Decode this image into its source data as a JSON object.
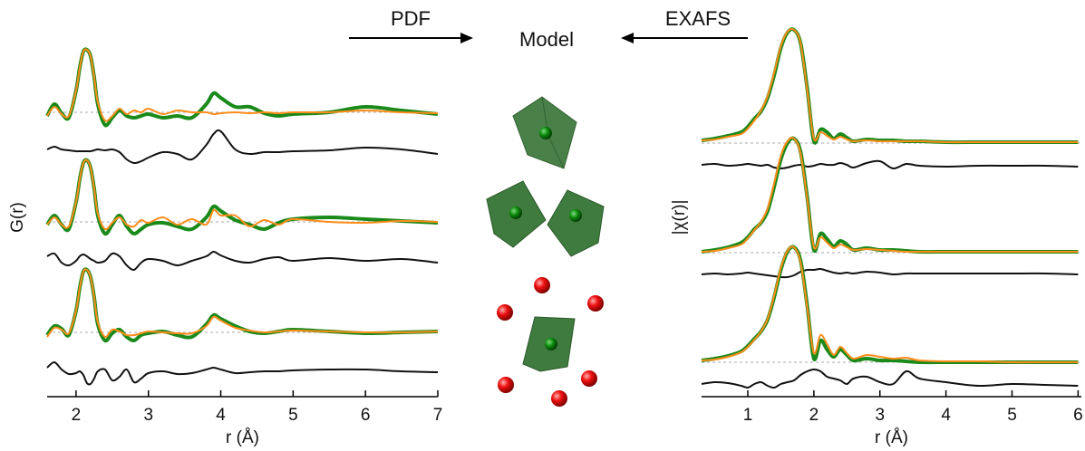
{
  "header": {
    "left_label": "PDF",
    "center_label": "Model",
    "right_label": "EXAFS"
  },
  "chart_data": [
    {
      "type": "line",
      "xlabel": "r (Å)",
      "ylabel": "G(r)",
      "xlim": [
        1.6,
        7.0
      ],
      "xticks": [
        2,
        3,
        4,
        5,
        6,
        7
      ],
      "ylim": [
        0,
        400
      ],
      "x": [
        1.6,
        1.7,
        1.8,
        1.9,
        2.0,
        2.05,
        2.1,
        2.15,
        2.2,
        2.25,
        2.3,
        2.4,
        2.5,
        2.6,
        2.7,
        2.8,
        2.9,
        3.0,
        3.2,
        3.4,
        3.6,
        3.8,
        3.9,
        4.0,
        4.2,
        4.4,
        4.6,
        4.8,
        5.0,
        5.5,
        6.0,
        6.5,
        7.0
      ],
      "baselines": [
        314,
        193,
        71
      ],
      "baseline_color": "#aaaaaa",
      "series": [
        {
          "color": "#1a8a1a",
          "width": 4,
          "values": [
            310,
            323,
            313,
            308,
            338,
            363,
            381,
            383,
            376,
            353,
            323,
            300,
            308,
            316,
            310,
            308,
            310,
            312,
            308,
            310,
            308,
            323,
            335,
            330,
            320,
            320,
            313,
            310,
            312,
            314,
            320,
            316,
            312
          ]
        },
        {
          "color": "#ff8c1a",
          "width": 2,
          "values": [
            310,
            320,
            312,
            310,
            338,
            363,
            381,
            383,
            376,
            353,
            325,
            305,
            310,
            318,
            312,
            316,
            314,
            318,
            312,
            316,
            314,
            314,
            312,
            313,
            314,
            313,
            314,
            313,
            314,
            314,
            316,
            314,
            313
          ]
        },
        {
          "color": "#111111",
          "width": 2,
          "values": [
            273,
            276,
            273,
            272,
            271,
            271,
            271,
            271,
            271,
            272,
            273,
            272,
            273,
            270,
            262,
            258,
            260,
            264,
            270,
            268,
            262,
            278,
            290,
            293,
            273,
            268,
            270,
            270,
            271,
            272,
            275,
            273,
            268
          ]
        },
        {
          "color": "#1a8a1a",
          "width": 4,
          "values": [
            190,
            200,
            190,
            185,
            215,
            240,
            258,
            261,
            253,
            230,
            200,
            180,
            190,
            200,
            188,
            180,
            185,
            190,
            192,
            188,
            185,
            198,
            210,
            205,
            195,
            190,
            185,
            192,
            196,
            198,
            196,
            194,
            192
          ]
        },
        {
          "color": "#ff8c1a",
          "width": 2,
          "values": [
            190,
            198,
            190,
            188,
            215,
            240,
            258,
            261,
            253,
            230,
            202,
            185,
            192,
            198,
            190,
            188,
            195,
            192,
            198,
            190,
            196,
            190,
            206,
            200,
            200,
            188,
            195,
            190,
            196,
            193,
            192,
            194,
            193
          ]
        },
        {
          "color": "#111111",
          "width": 2,
          "values": [
            155,
            158,
            148,
            145,
            150,
            155,
            157,
            155,
            152,
            150,
            148,
            150,
            158,
            155,
            145,
            140,
            148,
            152,
            150,
            145,
            150,
            155,
            160,
            156,
            150,
            148,
            152,
            154,
            150,
            153,
            150,
            152,
            148
          ]
        },
        {
          "color": "#1a8a1a",
          "width": 4,
          "values": [
            68,
            78,
            75,
            68,
            95,
            120,
            138,
            140,
            132,
            110,
            80,
            62,
            70,
            74,
            66,
            62,
            68,
            70,
            72,
            68,
            66,
            80,
            90,
            86,
            78,
            72,
            70,
            72,
            74,
            72,
            70,
            71,
            72
          ]
        },
        {
          "color": "#ff8c1a",
          "width": 2,
          "values": [
            66,
            76,
            74,
            70,
            95,
            120,
            138,
            140,
            132,
            110,
            82,
            66,
            74,
            72,
            68,
            68,
            70,
            72,
            71,
            70,
            70,
            78,
            88,
            84,
            76,
            73,
            71,
            72,
            73,
            72,
            71,
            71,
            72
          ]
        },
        {
          "color": "#111111",
          "width": 2,
          "values": [
            32,
            38,
            30,
            25,
            26,
            28,
            24,
            15,
            14,
            20,
            28,
            30,
            18,
            22,
            30,
            16,
            20,
            26,
            28,
            25,
            26,
            30,
            32,
            30,
            26,
            27,
            28,
            28,
            29,
            30,
            30,
            28,
            27
          ]
        }
      ]
    },
    {
      "type": "line",
      "xlabel": "r (Å)",
      "ylabel": "|χ(r)|",
      "xlim": [
        0.3,
        6.05
      ],
      "xticks": [
        1,
        2,
        3,
        4,
        5,
        6
      ],
      "ylim": [
        0,
        400
      ],
      "x": [
        0.3,
        0.5,
        0.7,
        0.9,
        1.0,
        1.1,
        1.2,
        1.3,
        1.4,
        1.5,
        1.6,
        1.7,
        1.8,
        1.9,
        2.0,
        2.1,
        2.2,
        2.3,
        2.4,
        2.5,
        2.6,
        2.8,
        3.0,
        3.2,
        3.4,
        3.6,
        4.0,
        4.5,
        5.0,
        5.5,
        6.0
      ],
      "baselines": [
        280,
        159,
        38
      ],
      "baseline_color": "#aaaaaa",
      "series": [
        {
          "color": "#1a8a1a",
          "width": 4,
          "values": [
            283,
            285,
            288,
            292,
            298,
            307,
            315,
            330,
            355,
            385,
            402,
            405,
            390,
            340,
            282,
            295,
            292,
            285,
            290,
            286,
            282,
            284,
            283,
            283,
            282,
            282,
            281,
            281,
            281,
            281,
            281
          ]
        },
        {
          "color": "#ff8c1a",
          "width": 2,
          "values": [
            283,
            284,
            287,
            290,
            296,
            305,
            316,
            332,
            358,
            387,
            403,
            405,
            390,
            338,
            285,
            292,
            288,
            284,
            287,
            284,
            282,
            283,
            282,
            282,
            282,
            282,
            281,
            281,
            281,
            281,
            281
          ]
        },
        {
          "color": "#111111",
          "width": 2,
          "values": [
            256,
            257,
            255,
            256,
            257,
            256,
            255,
            256,
            253,
            252,
            253,
            255,
            256,
            254,
            255,
            257,
            256,
            256,
            258,
            256,
            253,
            258,
            260,
            252,
            257,
            255,
            254,
            255,
            255,
            255,
            254
          ]
        },
        {
          "color": "#1a8a1a",
          "width": 4,
          "values": [
            160,
            162,
            165,
            170,
            176,
            185,
            192,
            205,
            232,
            262,
            280,
            285,
            270,
            220,
            162,
            180,
            174,
            166,
            172,
            168,
            162,
            164,
            162,
            162,
            161,
            160,
            160,
            160,
            160,
            160,
            160
          ]
        },
        {
          "color": "#ff8c1a",
          "width": 2,
          "values": [
            160,
            161,
            164,
            168,
            175,
            184,
            193,
            208,
            236,
            266,
            282,
            285,
            268,
            218,
            165,
            176,
            170,
            164,
            168,
            165,
            162,
            163,
            162,
            161,
            160,
            160,
            160,
            160,
            160,
            160,
            160
          ]
        },
        {
          "color": "#111111",
          "width": 2,
          "values": [
            135,
            136,
            135,
            136,
            137,
            136,
            135,
            134,
            133,
            132,
            132,
            134,
            138,
            140,
            140,
            141,
            139,
            137,
            136,
            137,
            136,
            138,
            137,
            135,
            136,
            136,
            136,
            136,
            136,
            136,
            135
          ]
        },
        {
          "color": "#1a8a1a",
          "width": 4,
          "values": [
            40,
            42,
            45,
            50,
            56,
            64,
            72,
            85,
            110,
            140,
            160,
            165,
            150,
            100,
            42,
            62,
            52,
            44,
            52,
            46,
            40,
            42,
            40,
            40,
            39,
            38,
            38,
            38,
            38,
            38,
            38
          ]
        },
        {
          "color": "#ff8c1a",
          "width": 2,
          "values": [
            40,
            41,
            44,
            49,
            55,
            63,
            72,
            86,
            112,
            142,
            161,
            165,
            148,
            98,
            48,
            68,
            58,
            46,
            55,
            48,
            42,
            46,
            44,
            42,
            43,
            40,
            39,
            39,
            38,
            38,
            38
          ]
        },
        {
          "color": "#111111",
          "width": 2,
          "values": [
            14,
            16,
            15,
            12,
            10,
            14,
            16,
            12,
            10,
            14,
            16,
            18,
            24,
            28,
            30,
            28,
            22,
            20,
            18,
            14,
            20,
            22,
            16,
            14,
            28,
            20,
            16,
            12,
            14,
            13,
            12
          ]
        }
      ]
    }
  ]
}
